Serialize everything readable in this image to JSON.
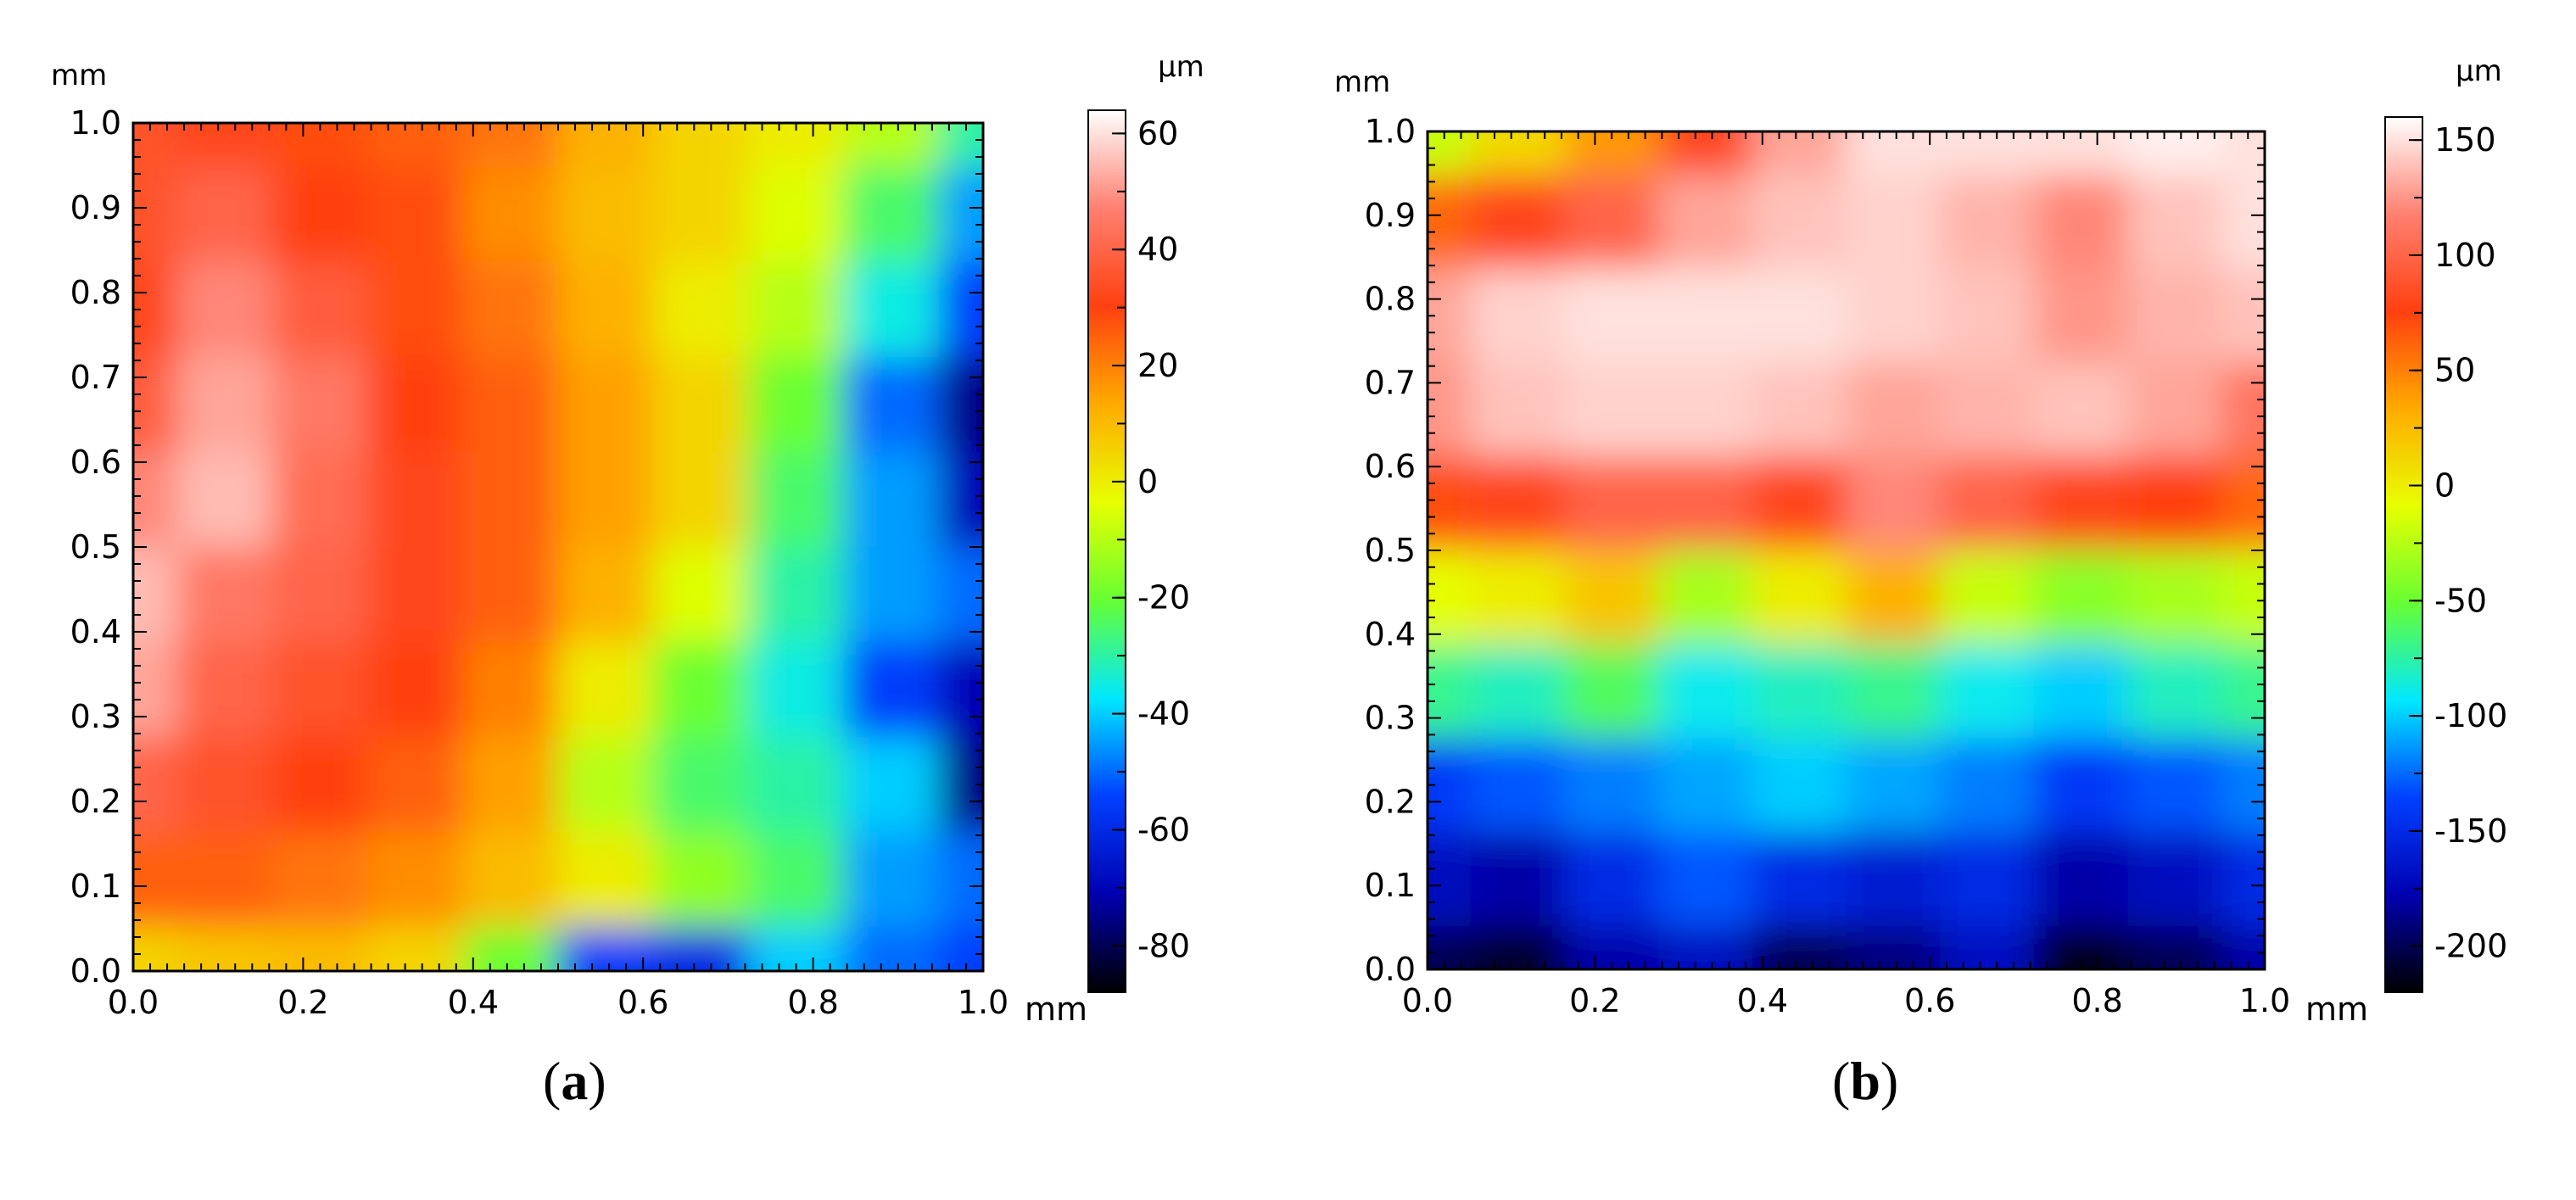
{
  "figure": {
    "panels": [
      {
        "label_open": "(",
        "label_letter": "a",
        "label_close": ")"
      },
      {
        "label_open": "(",
        "label_letter": "b",
        "label_close": ")"
      }
    ]
  },
  "chart_data": [
    {
      "type": "heatmap",
      "panel": "a",
      "title": "",
      "xlabel": "mm",
      "ylabel": "mm",
      "xlim": [
        0.0,
        1.0
      ],
      "ylim": [
        0.0,
        1.0
      ],
      "x_ticks": [
        "0.0",
        "0.2",
        "0.4",
        "0.6",
        "0.8",
        "1.0"
      ],
      "y_ticks": [
        "0.0",
        "0.1",
        "0.2",
        "0.3",
        "0.4",
        "0.5",
        "0.6",
        "0.7",
        "0.8",
        "0.9",
        "1.0"
      ],
      "colorbar": {
        "unit": "µm",
        "range": [
          -88,
          64
        ],
        "ticks": [
          60,
          40,
          20,
          0,
          -20,
          -40,
          -60,
          -80
        ]
      },
      "colormap": [
        "#000000",
        "#0000b0",
        "#0040ff",
        "#00e8ff",
        "#66ff33",
        "#e8ff00",
        "#ffaa00",
        "#ff4010",
        "#ff8070",
        "#ffffff"
      ],
      "grid": false,
      "rows_top_to_bottom": [
        [
          35,
          32,
          28,
          25,
          22,
          12,
          5,
          0,
          -10,
          -30
        ],
        [
          35,
          40,
          30,
          28,
          18,
          10,
          5,
          -5,
          -25,
          -45
        ],
        [
          32,
          48,
          38,
          28,
          22,
          12,
          0,
          -10,
          -35,
          -55
        ],
        [
          38,
          52,
          45,
          30,
          25,
          15,
          5,
          -20,
          -50,
          -75
        ],
        [
          48,
          55,
          42,
          32,
          25,
          15,
          5,
          -25,
          -45,
          -70
        ],
        [
          55,
          45,
          40,
          32,
          25,
          12,
          -5,
          -30,
          -45,
          -50
        ],
        [
          52,
          40,
          35,
          30,
          20,
          0,
          -20,
          -35,
          -55,
          -70
        ],
        [
          40,
          35,
          30,
          25,
          15,
          -10,
          -25,
          -30,
          -40,
          -75
        ],
        [
          25,
          25,
          22,
          18,
          10,
          0,
          -15,
          -25,
          -45,
          -50
        ],
        [
          5,
          8,
          10,
          5,
          -20,
          -55,
          -60,
          -40,
          -50,
          -55
        ]
      ]
    },
    {
      "type": "heatmap",
      "panel": "b",
      "title": "",
      "xlabel": "mm",
      "ylabel": "mm",
      "xlim": [
        0.0,
        1.0
      ],
      "ylim": [
        0.0,
        1.0
      ],
      "x_ticks": [
        "0.0",
        "0.2",
        "0.4",
        "0.6",
        "0.8",
        "1.0"
      ],
      "y_ticks": [
        "0.0",
        "0.1",
        "0.2",
        "0.3",
        "0.4",
        "0.5",
        "0.6",
        "0.7",
        "0.8",
        "0.9",
        "1.0"
      ],
      "colorbar": {
        "unit": "µm",
        "range": [
          -220,
          160
        ],
        "ticks": [
          150,
          100,
          50,
          0,
          -50,
          -100,
          -150,
          -200
        ]
      },
      "colormap": [
        "#000000",
        "#0000b0",
        "#0040ff",
        "#00e8ff",
        "#66ff33",
        "#e8ff00",
        "#ffaa00",
        "#ff4010",
        "#ff8070",
        "#ffffff"
      ],
      "grid": false,
      "rows_top_to_bottom": [
        [
          -20,
          10,
          40,
          80,
          130,
          150,
          150,
          150,
          155,
          150
        ],
        [
          60,
          80,
          100,
          130,
          140,
          145,
          135,
          120,
          140,
          150
        ],
        [
          130,
          145,
          150,
          150,
          150,
          145,
          140,
          125,
          135,
          140
        ],
        [
          125,
          140,
          145,
          145,
          140,
          130,
          135,
          140,
          130,
          110
        ],
        [
          70,
          80,
          100,
          100,
          80,
          120,
          100,
          80,
          75,
          60
        ],
        [
          -10,
          0,
          20,
          -30,
          0,
          30,
          -20,
          -40,
          -30,
          -20
        ],
        [
          -70,
          -80,
          -60,
          -90,
          -80,
          -70,
          -90,
          -100,
          -80,
          -70
        ],
        [
          -140,
          -130,
          -120,
          -110,
          -100,
          -110,
          -120,
          -140,
          -130,
          -120
        ],
        [
          -170,
          -180,
          -150,
          -130,
          -150,
          -160,
          -150,
          -180,
          -170,
          -150
        ],
        [
          -200,
          -210,
          -180,
          -170,
          -200,
          -190,
          -170,
          -215,
          -200,
          -180
        ]
      ]
    }
  ]
}
